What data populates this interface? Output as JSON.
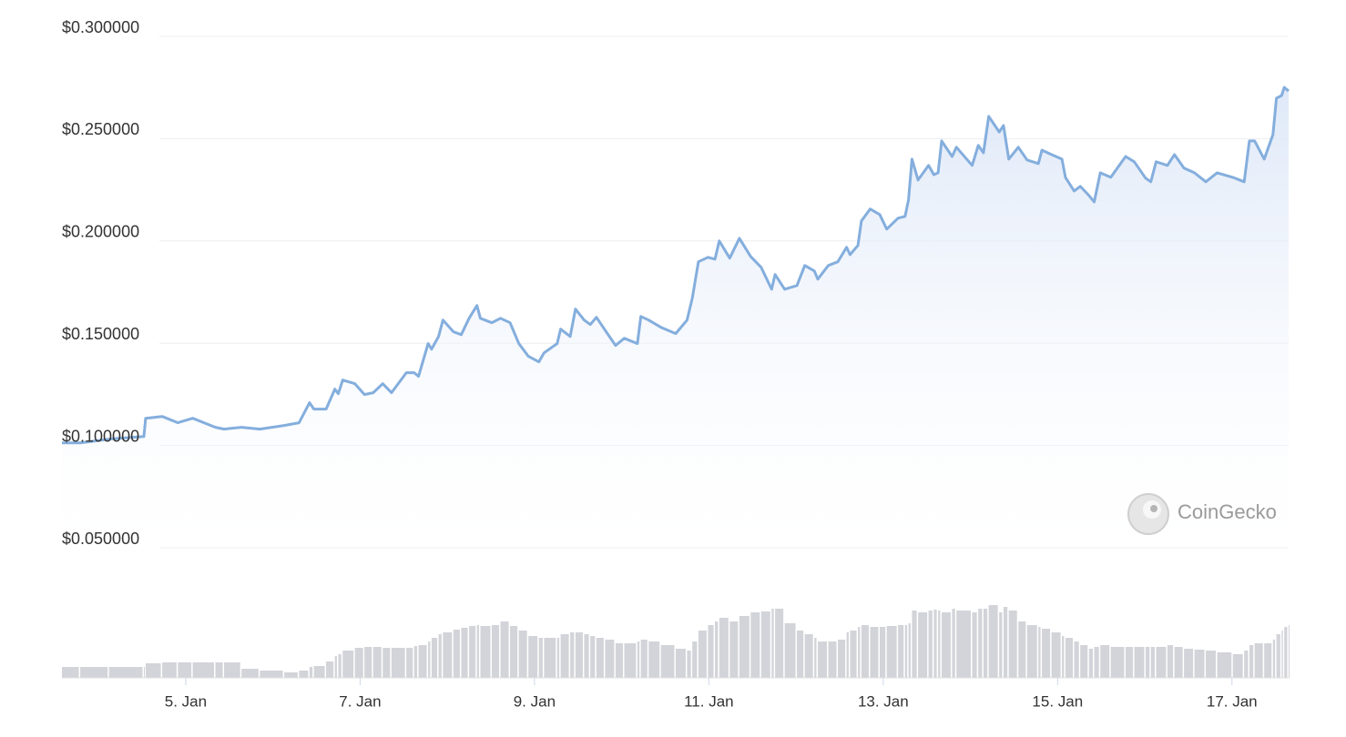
{
  "chart_data": {
    "type": "line",
    "x": [
      3.58,
      3.79,
      4.12,
      4.52,
      4.54,
      4.73,
      4.91,
      5.08,
      5.34,
      5.44,
      5.64,
      5.85,
      6.13,
      6.3,
      6.42,
      6.47,
      6.61,
      6.71,
      6.75,
      6.8,
      6.94,
      7.05,
      7.15,
      7.26,
      7.36,
      7.53,
      7.62,
      7.67,
      7.78,
      7.82,
      7.9,
      7.95,
      8.07,
      8.16,
      8.25,
      8.34,
      8.38,
      8.51,
      8.61,
      8.72,
      8.82,
      8.93,
      9.05,
      9.11,
      9.26,
      9.3,
      9.41,
      9.47,
      9.57,
      9.64,
      9.71,
      9.81,
      9.93,
      10.03,
      10.18,
      10.22,
      10.31,
      10.45,
      10.62,
      10.75,
      10.81,
      10.88,
      10.99,
      11.07,
      11.12,
      11.24,
      11.35,
      11.48,
      11.6,
      11.72,
      11.76,
      11.87,
      12.01,
      12.1,
      12.21,
      12.25,
      12.37,
      12.48,
      12.58,
      12.62,
      12.71,
      12.75,
      12.85,
      12.96,
      13.04,
      13.17,
      13.25,
      13.29,
      13.33,
      13.4,
      13.52,
      13.58,
      13.63,
      13.67,
      13.79,
      13.84,
      14.02,
      14.09,
      14.15,
      14.21,
      14.33,
      14.38,
      14.44,
      14.55,
      14.65,
      14.78,
      14.82,
      14.93,
      15.05,
      15.09,
      15.19,
      15.26,
      15.36,
      15.42,
      15.49,
      15.61,
      15.78,
      15.88,
      16.01,
      16.07,
      16.13,
      16.26,
      16.34,
      16.45,
      16.57,
      16.7,
      16.83,
      17.01,
      17.14,
      17.2,
      17.26,
      17.37,
      17.47,
      17.51,
      17.57,
      17.6,
      17.65
    ],
    "series": [
      {
        "color": "#84aedd",
        "values": [
          0.1013,
          0.1013,
          0.1031,
          0.1044,
          0.1133,
          0.1142,
          0.1111,
          0.1133,
          0.1089,
          0.108,
          0.1089,
          0.108,
          0.1098,
          0.1111,
          0.1209,
          0.1178,
          0.1178,
          0.1276,
          0.1253,
          0.132,
          0.1302,
          0.1249,
          0.1258,
          0.1302,
          0.1258,
          0.1356,
          0.1356,
          0.1338,
          0.1498,
          0.1471,
          0.1533,
          0.1613,
          0.1556,
          0.1542,
          0.1622,
          0.1684,
          0.1622,
          0.16,
          0.1622,
          0.16,
          0.1498,
          0.1436,
          0.1409,
          0.1453,
          0.1498,
          0.1569,
          0.1533,
          0.1667,
          0.1613,
          0.1591,
          0.1627,
          0.1564,
          0.1489,
          0.1524,
          0.1498,
          0.1631,
          0.1613,
          0.1578,
          0.1547,
          0.1613,
          0.172,
          0.1898,
          0.192,
          0.1911,
          0.2,
          0.1916,
          0.2013,
          0.1924,
          0.1871,
          0.1764,
          0.1836,
          0.1764,
          0.1782,
          0.188,
          0.1853,
          0.1813,
          0.188,
          0.1898,
          0.1969,
          0.1933,
          0.1978,
          0.2098,
          0.2156,
          0.2129,
          0.2058,
          0.2111,
          0.212,
          0.22,
          0.24,
          0.2298,
          0.2369,
          0.2324,
          0.2333,
          0.2489,
          0.2413,
          0.2458,
          0.2369,
          0.2467,
          0.2431,
          0.2609,
          0.2533,
          0.2564,
          0.24,
          0.2458,
          0.2396,
          0.2378,
          0.2444,
          0.2422,
          0.24,
          0.2311,
          0.2244,
          0.2267,
          0.2222,
          0.2191,
          0.2333,
          0.2311,
          0.2413,
          0.2387,
          0.2307,
          0.2289,
          0.2387,
          0.2369,
          0.2422,
          0.2356,
          0.2333,
          0.2289,
          0.2333,
          0.2311,
          0.2289,
          0.2489,
          0.2489,
          0.24,
          0.252,
          0.2698,
          0.2711,
          0.2751,
          0.2733
        ]
      },
      {
        "color": "#d3d4d9",
        "axis": "y2",
        "values": [
          12,
          12,
          12,
          12,
          16,
          17,
          17,
          17,
          17,
          17,
          10,
          8,
          6,
          8,
          12,
          13,
          18,
          24,
          26,
          30,
          33,
          34,
          34,
          33,
          33,
          33,
          35,
          36,
          40,
          44,
          48,
          50,
          53,
          55,
          57,
          58,
          57,
          58,
          62,
          57,
          52,
          46,
          44,
          44,
          44,
          48,
          50,
          50,
          48,
          46,
          44,
          42,
          38,
          38,
          40,
          42,
          40,
          36,
          32,
          30,
          40,
          52,
          58,
          62,
          66,
          62,
          68,
          72,
          73,
          76,
          76,
          60,
          52,
          48,
          44,
          40,
          40,
          42,
          50,
          52,
          56,
          58,
          56,
          56,
          57,
          58,
          58,
          60,
          74,
          72,
          74,
          75,
          74,
          72,
          76,
          74,
          72,
          76,
          76,
          80,
          72,
          78,
          74,
          62,
          58,
          56,
          54,
          50,
          46,
          44,
          40,
          36,
          32,
          34,
          36,
          34,
          34,
          34,
          34,
          34,
          34,
          36,
          34,
          32,
          31,
          30,
          28,
          26,
          30,
          36,
          38,
          38,
          42,
          48,
          52,
          56,
          58
        ]
      }
    ],
    "xlim": [
      3.58,
      17.65
    ],
    "xticks": [
      {
        "value": 5,
        "label": "5. Jan"
      },
      {
        "value": 7,
        "label": "7. Jan"
      },
      {
        "value": 9,
        "label": "9. Jan"
      },
      {
        "value": 11,
        "label": "11. Jan"
      },
      {
        "value": 13,
        "label": "13. Jan"
      },
      {
        "value": 15,
        "label": "15. Jan"
      },
      {
        "value": 17,
        "label": "17. Jan"
      }
    ],
    "ylim": [
      0.05,
      0.3
    ],
    "yticks": [
      {
        "value": 0.3,
        "label": "$0.300000"
      },
      {
        "value": 0.25,
        "label": "$0.250000"
      },
      {
        "value": 0.2,
        "label": "$0.200000"
      },
      {
        "value": 0.15,
        "label": "$0.150000"
      },
      {
        "value": 0.1,
        "label": "$0.100000"
      },
      {
        "value": 0.05,
        "label": "$0.050000"
      }
    ],
    "y2lim": [
      0,
      100
    ],
    "grid": true,
    "watermark": "CoinGecko"
  }
}
